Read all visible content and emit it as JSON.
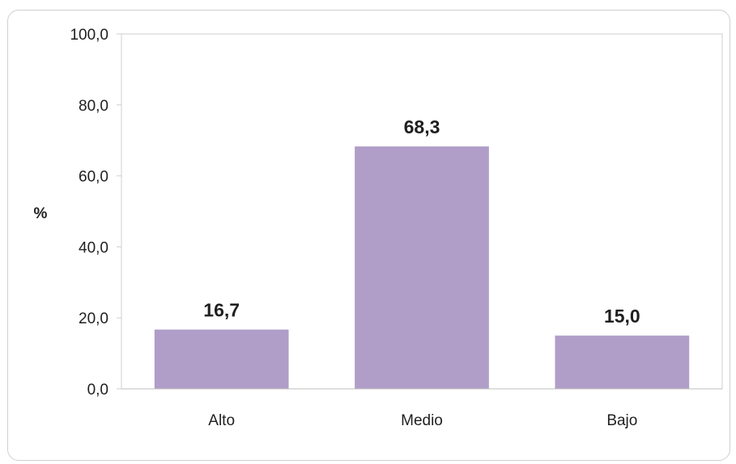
{
  "chart_data": {
    "type": "bar",
    "title": "",
    "xlabel": "",
    "ylabel": "%",
    "categories": [
      "Alto",
      "Medio",
      "Bajo"
    ],
    "values": [
      16.7,
      68.3,
      15.0
    ],
    "data_labels": [
      "16,7",
      "68,3",
      "15,0"
    ],
    "ylim": [
      0,
      100
    ],
    "yticks": [
      0,
      20,
      40,
      60,
      80,
      100
    ],
    "ytick_labels": [
      "0,0",
      "20,0",
      "40,0",
      "60,0",
      "80,0",
      "100,0"
    ],
    "grid": false,
    "legend": "none",
    "colors": {
      "bar": "#b09dc8",
      "axis": "#cfcfcf",
      "text": "#1f1f1f"
    }
  }
}
